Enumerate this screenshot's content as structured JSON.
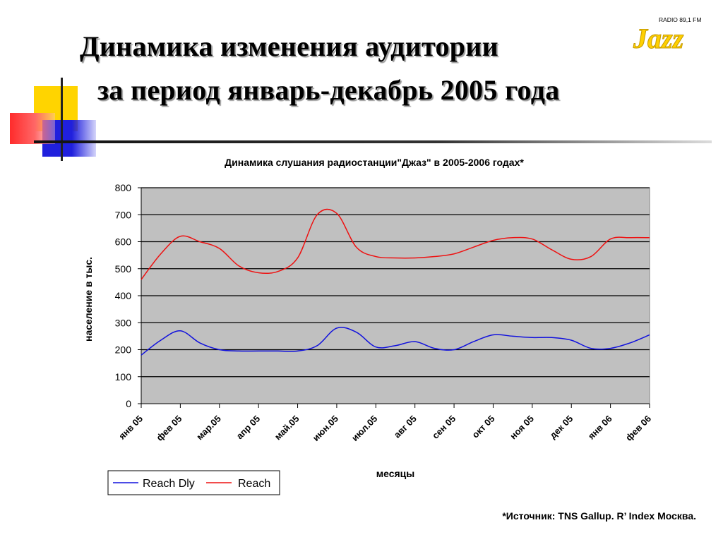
{
  "slide": {
    "title_line1": "Динамика изменения аудитории",
    "title_line2": "за период январь-декабрь 2005 года",
    "logo": {
      "top_text": "RADIO 89,1 FM",
      "word": "Jazz"
    },
    "source": "*Источник: TNS Gallup. R’ Index Москва."
  },
  "colors": {
    "accent_yellow": "#ffd400",
    "accent_red": "#ff3333",
    "accent_blue": "#2222dd",
    "plot_bg": "#c0c0c0",
    "reach": "#ee1111",
    "reach_dly": "#1111dd"
  },
  "chart_data": {
    "type": "line",
    "title": "Динамика слушания радиостанции\"Джаз\" в 2005-2006   годах*",
    "xlabel": "месяцы",
    "ylabel": "население в тыс.",
    "ylim": [
      0,
      800
    ],
    "yticks": [
      0,
      100,
      200,
      300,
      400,
      500,
      600,
      700,
      800
    ],
    "grid": true,
    "legend_position": "bottom-left",
    "categories": [
      "янв 05",
      "фев 05",
      "мар.05",
      "апр 05",
      "май.05",
      "июн.05",
      "июл.05",
      "авг 05",
      "сен 05",
      "окт 05",
      "ноя 05",
      "дек 05",
      "янв 06",
      "фев 06"
    ],
    "x": [
      0,
      0.5,
      1,
      1.5,
      2,
      2.5,
      3,
      3.5,
      4,
      4.5,
      5,
      5.5,
      6,
      6.5,
      7,
      7.5,
      8,
      8.5,
      9,
      9.5,
      10,
      10.5,
      11,
      11.5,
      12,
      12.5,
      13
    ],
    "series": [
      {
        "name": "Reach Dly",
        "color": "#1111dd",
        "values": [
          180,
          235,
          270,
          225,
          200,
          195,
          195,
          195,
          195,
          215,
          280,
          265,
          210,
          215,
          230,
          205,
          200,
          230,
          255,
          250,
          245,
          245,
          235,
          205,
          205,
          225,
          255
        ]
      },
      {
        "name": "Reach",
        "color": "#ee1111",
        "values": [
          460,
          555,
          620,
          600,
          575,
          510,
          485,
          490,
          540,
          700,
          705,
          580,
          545,
          540,
          540,
          545,
          555,
          580,
          605,
          615,
          610,
          570,
          535,
          545,
          610,
          615,
          615
        ]
      }
    ]
  }
}
